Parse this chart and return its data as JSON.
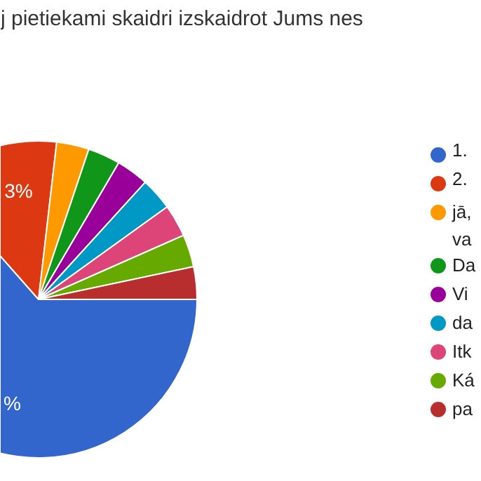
{
  "chart_data": {
    "type": "pie",
    "title": "j pietiekami skaidri izskaidrot Jums nes",
    "categories": [
      "1.",
      "2.",
      "jā,\nva",
      "Da",
      "Vi",
      "da",
      "Itk",
      "Ká",
      "pa"
    ],
    "values": [
      63.3,
      13.3,
      3.3,
      3.3,
      3.3,
      3.3,
      3.3,
      3.3,
      3.3
    ],
    "colors": [
      "#3366cc",
      "#dc3912",
      "#ff9900",
      "#109618",
      "#990099",
      "#0099c6",
      "#dd4477",
      "#66aa00",
      "#b82e2e"
    ],
    "annotations": [
      {
        "text": "%",
        "x": "1."
      },
      {
        "text": "3%",
        "x": "2."
      }
    ],
    "legend": "right"
  }
}
